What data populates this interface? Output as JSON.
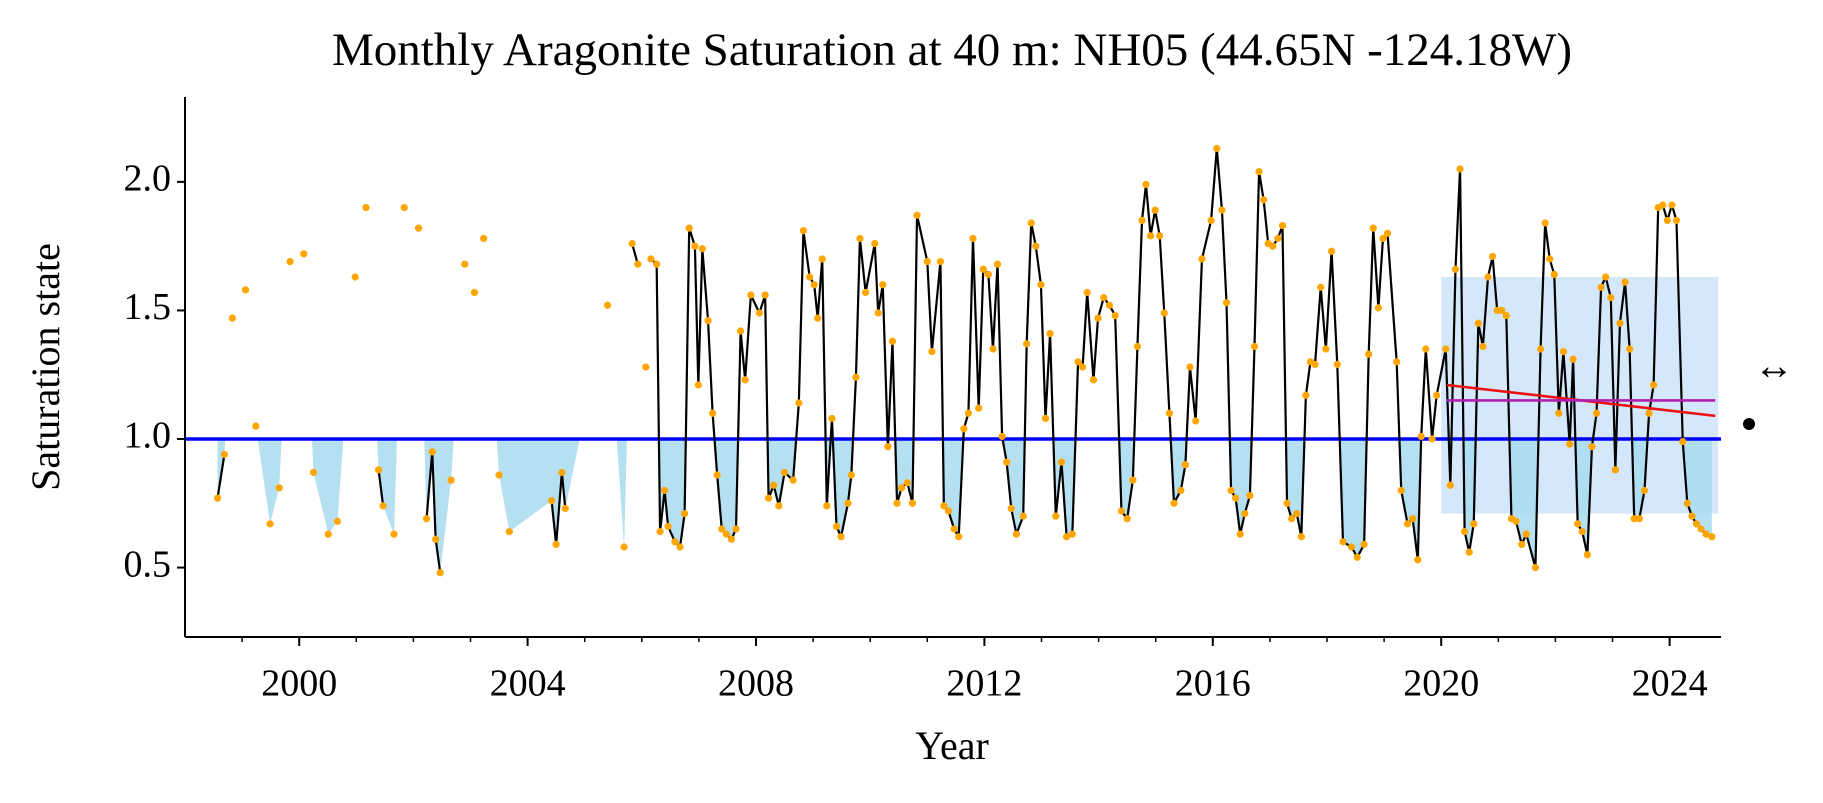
{
  "chart_data": {
    "type": "line",
    "title": "Monthly Aragonite Saturation at 40 m: NH05 (44.65N -124.18W)",
    "x_label": "Year",
    "y_label": "Saturation state",
    "xlim": [
      1998,
      2024.9
    ],
    "ylim": [
      0.23,
      2.33
    ],
    "xticks": [
      2000,
      2004,
      2008,
      2012,
      2016,
      2020,
      2024
    ],
    "xminorticks": [
      1999,
      2001,
      2002,
      2003,
      2005,
      2006,
      2007,
      2009,
      2010,
      2011,
      2013,
      2014,
      2015,
      2017,
      2018,
      2019,
      2021,
      2022,
      2023
    ],
    "yticks": [
      0.5,
      {
        "value": 1,
        "label": "1.0"
      },
      1.5,
      {
        "value": 2,
        "label": "2.0"
      }
    ],
    "reference_line": {
      "value": 1,
      "color": "#0000ff"
    },
    "below_fill_color": "#a8dbee",
    "shaded_region": {
      "x": [
        2020,
        2024.85
      ],
      "y": [
        0.71,
        1.63
      ],
      "color": "#cfe4fb"
    },
    "trend_line": {
      "x": [
        2020.1,
        2024.8
      ],
      "y": [
        1.21,
        1.09
      ],
      "color": "#ee1111"
    },
    "mean_line": {
      "x": [
        2020.1,
        2024.8
      ],
      "y": [
        1.15,
        1.15
      ],
      "color": "#b020b0"
    },
    "annotations": [
      "↔"
    ],
    "x": [
      1998.57,
      1998.69,
      1998.75,
      1998.83,
      1998.9,
      1999.06,
      1999.15,
      1999.24,
      1999.32,
      1999.49,
      1999.57,
      1999.65,
      1999.73,
      1999.84,
      1999.92,
      2000.08,
      2000.16,
      2000.25,
      2000.33,
      2000.51,
      2000.59,
      2000.67,
      2000.75,
      2000.98,
      2001.06,
      2001.17,
      2001.25,
      2001.39,
      2001.47,
      2001.55,
      2001.66,
      2001.74,
      2001.84,
      2001.92,
      2002.09,
      2002.16,
      2002.23,
      2002.33,
      2002.39,
      2002.47,
      2002.55,
      2002.66,
      2002.74,
      2002.9,
      2002.98,
      2003.07,
      2003.15,
      2003.23,
      2003.31,
      2003.5,
      2003.58,
      2003.68,
      2003.76,
      2004.42,
      2004.5,
      2004.6,
      2004.66,
      2004.74,
      2005.4,
      2005.48,
      2005.69,
      2005.77,
      2005.83,
      2005.93,
      2006.0,
      2006.07,
      2006.12,
      2006.16,
      2006.26,
      2006.32,
      2006.4,
      2006.46,
      2006.58,
      2006.67,
      2006.75,
      2006.83,
      2006.93,
      2006.99,
      2007.06,
      2007.16,
      2007.24,
      2007.32,
      2007.4,
      2007.48,
      2007.57,
      2007.65,
      2007.73,
      2007.81,
      2007.91,
      2008.06,
      2008.16,
      2008.22,
      2008.31,
      2008.4,
      2008.5,
      2008.65,
      2008.75,
      2008.83,
      2008.94,
      2009.02,
      2009.08,
      2009.16,
      2009.24,
      2009.33,
      2009.41,
      2009.49,
      2009.61,
      2009.67,
      2009.75,
      2009.82,
      2009.92,
      2010.08,
      2010.14,
      2010.22,
      2010.31,
      2010.39,
      2010.47,
      2010.55,
      2010.65,
      2010.74,
      2010.82,
      2011.0,
      2011.08,
      2011.23,
      2011.29,
      2011.37,
      2011.47,
      2011.55,
      2011.64,
      2011.72,
      2011.8,
      2011.9,
      2011.98,
      2012.07,
      2012.15,
      2012.23,
      2012.31,
      2012.39,
      2012.47,
      2012.56,
      2012.68,
      2012.74,
      2012.82,
      2012.9,
      2012.99,
      2013.07,
      2013.15,
      2013.25,
      2013.35,
      2013.44,
      2013.54,
      2013.64,
      2013.72,
      2013.8,
      2013.91,
      2013.99,
      2014.09,
      2014.19,
      2014.29,
      2014.4,
      2014.5,
      2014.6,
      2014.68,
      2014.76,
      2014.83,
      2014.91,
      2014.99,
      2015.07,
      2015.15,
      2015.24,
      2015.32,
      2015.44,
      2015.52,
      2015.6,
      2015.7,
      2015.81,
      2015.97,
      2016.07,
      2016.16,
      2016.24,
      2016.32,
      2016.4,
      2016.48,
      2016.56,
      2016.65,
      2016.73,
      2016.81,
      2016.89,
      2016.97,
      2017.05,
      2017.14,
      2017.22,
      2017.3,
      2017.38,
      2017.47,
      2017.55,
      2017.63,
      2017.71,
      2017.79,
      2017.89,
      2017.98,
      2018.08,
      2018.18,
      2018.28,
      2018.43,
      2018.53,
      2018.65,
      2018.73,
      2018.81,
      2018.9,
      2018.98,
      2019.06,
      2019.22,
      2019.3,
      2019.41,
      2019.5,
      2019.59,
      2019.65,
      2019.73,
      2019.84,
      2019.92,
      2020.08,
      2020.16,
      2020.25,
      2020.33,
      2020.41,
      2020.49,
      2020.57,
      2020.65,
      2020.73,
      2020.82,
      2020.9,
      2020.98,
      2021.06,
      2021.14,
      2021.23,
      2021.31,
      2021.41,
      2021.49,
      2021.65,
      2021.74,
      2021.82,
      2021.9,
      2021.98,
      2022.06,
      2022.14,
      2022.25,
      2022.31,
      2022.39,
      2022.47,
      2022.56,
      2022.64,
      2022.72,
      2022.8,
      2022.88,
      2022.97,
      2023.05,
      2023.13,
      2023.22,
      2023.3,
      2023.38,
      2023.47,
      2023.56,
      2023.64,
      2023.72,
      2023.8,
      2023.88,
      2023.96,
      2024.04,
      2024.12,
      2024.23,
      2024.31,
      2024.39,
      2024.47,
      2024.55,
      2024.64,
      2024.74
    ],
    "series": [
      {
        "color": "#000000",
        "point_color": "#ffa500",
        "values": [
          0.77,
          0.94,
          null,
          1.47,
          null,
          1.58,
          null,
          1.05,
          null,
          0.67,
          null,
          0.81,
          null,
          1.69,
          null,
          1.72,
          null,
          0.87,
          null,
          0.63,
          null,
          0.68,
          null,
          1.63,
          null,
          1.9,
          null,
          0.88,
          0.74,
          null,
          0.63,
          null,
          1.9,
          null,
          1.82,
          null,
          0.69,
          0.95,
          0.61,
          0.48,
          null,
          0.84,
          null,
          1.68,
          null,
          1.57,
          null,
          1.78,
          null,
          0.86,
          null,
          0.64,
          null,
          0.76,
          0.59,
          0.87,
          0.73,
          null,
          1.52,
          null,
          0.58,
          null,
          1.76,
          1.68,
          null,
          1.28,
          null,
          1.7,
          1.68,
          0.64,
          0.8,
          0.66,
          0.6,
          0.58,
          0.71,
          1.82,
          1.75,
          1.21,
          1.74,
          1.46,
          1.1,
          0.86,
          0.65,
          0.63,
          0.61,
          0.65,
          1.42,
          1.23,
          1.56,
          1.49,
          1.56,
          0.77,
          0.82,
          0.74,
          0.87,
          0.84,
          1.14,
          1.81,
          1.63,
          1.6,
          1.47,
          1.7,
          0.74,
          1.08,
          0.66,
          0.62,
          0.75,
          0.86,
          1.24,
          1.78,
          1.57,
          1.76,
          1.49,
          1.6,
          0.97,
          1.38,
          0.75,
          0.81,
          0.83,
          0.75,
          1.87,
          1.69,
          1.34,
          1.69,
          0.74,
          0.72,
          0.65,
          0.62,
          1.04,
          1.1,
          1.78,
          1.12,
          1.66,
          1.64,
          1.35,
          1.68,
          1.01,
          0.91,
          0.73,
          0.63,
          0.7,
          1.37,
          1.84,
          1.75,
          1.6,
          1.08,
          1.41,
          0.7,
          0.91,
          0.62,
          0.63,
          1.3,
          1.28,
          1.57,
          1.23,
          1.47,
          1.55,
          1.52,
          1.48,
          0.72,
          0.69,
          0.84,
          1.36,
          1.85,
          1.99,
          1.79,
          1.89,
          1.79,
          1.49,
          1.1,
          0.75,
          0.8,
          0.9,
          1.28,
          1.07,
          1.7,
          1.85,
          2.13,
          1.89,
          1.53,
          0.8,
          0.77,
          0.63,
          0.71,
          0.78,
          1.36,
          2.04,
          1.93,
          1.76,
          1.75,
          1.78,
          1.83,
          0.75,
          0.69,
          0.71,
          0.62,
          1.17,
          1.3,
          1.29,
          1.59,
          1.35,
          1.73,
          1.29,
          0.6,
          0.58,
          0.54,
          0.59,
          1.33,
          1.82,
          1.51,
          1.78,
          1.8,
          1.3,
          0.8,
          0.67,
          0.69,
          0.53,
          1.01,
          1.35,
          1.0,
          1.17,
          1.35,
          0.82,
          1.66,
          2.05,
          0.64,
          0.56,
          0.67,
          1.45,
          1.36,
          1.63,
          1.71,
          1.5,
          1.5,
          1.48,
          0.69,
          0.68,
          0.59,
          0.63,
          0.5,
          1.35,
          1.84,
          1.7,
          1.64,
          1.1,
          1.34,
          0.98,
          1.31,
          0.67,
          0.64,
          0.55,
          0.97,
          1.1,
          1.59,
          1.63,
          1.55,
          0.88,
          1.45,
          1.61,
          1.35,
          0.69,
          0.69,
          0.8,
          1.1,
          1.21,
          1.9,
          1.91,
          1.85,
          1.91,
          1.85,
          0.99,
          0.75,
          0.7,
          0.67,
          0.65,
          0.63,
          0.62
        ]
      }
    ]
  }
}
